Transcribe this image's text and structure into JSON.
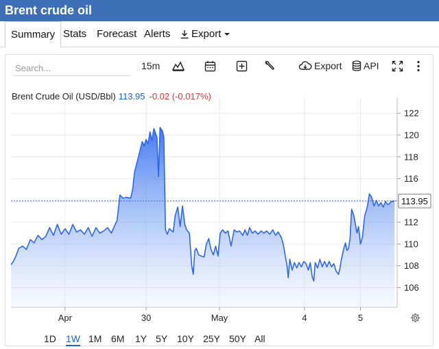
{
  "app": {
    "title": "Brent crude oil"
  },
  "tabs": [
    {
      "label": "Summary",
      "active": true
    },
    {
      "label": "Stats"
    },
    {
      "label": "Forecast"
    },
    {
      "label": "Alerts"
    },
    {
      "label": "Export",
      "icon": "download-icon",
      "dropdown": true
    }
  ],
  "toolbar": {
    "search_placeholder": "Search...",
    "interval": "15m",
    "export_label": "Export",
    "api_label": "API",
    "icons": [
      "area-chart-icon",
      "calendar-icon",
      "plus-square-icon",
      "wrench-icon",
      "cloud-download-icon",
      "database-icon",
      "fullscreen-icon",
      "more-vertical-icon"
    ]
  },
  "quote": {
    "name": "Brent Crude Oil (USD/Bbl)",
    "price": "113.95",
    "change": "-0.02 (-0.017%)"
  },
  "ranges": [
    {
      "label": "1D"
    },
    {
      "label": "1W",
      "active": true
    },
    {
      "label": "1M"
    },
    {
      "label": "6M"
    },
    {
      "label": "1Y"
    },
    {
      "label": "5Y"
    },
    {
      "label": "10Y"
    },
    {
      "label": "25Y"
    },
    {
      "label": "50Y"
    },
    {
      "label": "All"
    }
  ],
  "colors": {
    "header": "#3d6fb6",
    "line": "#2c66e8",
    "price": "#1f5fcf",
    "negative": "#d23b3b"
  },
  "chart_data": {
    "type": "area",
    "ylim": [
      104.2,
      123.4
    ],
    "y_ticks": [
      "122",
      "120",
      "118",
      "116",
      "114",
      "112",
      "110",
      "108",
      "106"
    ],
    "x_ticks": [
      {
        "label": "Apr",
        "x": 0.14
      },
      {
        "label": "30",
        "x": 0.35
      },
      {
        "label": "May",
        "x": 0.54
      },
      {
        "label": "4",
        "x": 0.76
      },
      {
        "label": "5",
        "x": 0.905
      }
    ],
    "last_label": "113.95",
    "last_value": 113.95,
    "series": [
      {
        "values": [
          [
            0.0,
            108.1
          ],
          [
            0.006,
            108.4
          ],
          [
            0.013,
            108.9
          ],
          [
            0.02,
            109.6
          ],
          [
            0.03,
            109.8
          ],
          [
            0.04,
            109.5
          ],
          [
            0.05,
            110.4
          ],
          [
            0.06,
            110.1
          ],
          [
            0.07,
            110.8
          ],
          [
            0.08,
            110.4
          ],
          [
            0.09,
            110.7
          ],
          [
            0.1,
            111.5
          ],
          [
            0.11,
            110.8
          ],
          [
            0.12,
            111.8
          ],
          [
            0.13,
            110.9
          ],
          [
            0.14,
            111.4
          ],
          [
            0.15,
            110.9
          ],
          [
            0.16,
            111.8
          ],
          [
            0.17,
            111.1
          ],
          [
            0.18,
            111.3
          ],
          [
            0.19,
            110.9
          ],
          [
            0.2,
            111.5
          ],
          [
            0.21,
            110.7
          ],
          [
            0.22,
            111.5
          ],
          [
            0.23,
            111.0
          ],
          [
            0.24,
            111.2
          ],
          [
            0.25,
            111.5
          ],
          [
            0.26,
            111.0
          ],
          [
            0.27,
            111.8
          ],
          [
            0.275,
            112.2
          ],
          [
            0.282,
            114.5
          ],
          [
            0.29,
            114.2
          ],
          [
            0.3,
            114.3
          ],
          [
            0.31,
            114.2
          ],
          [
            0.315,
            115.0
          ],
          [
            0.32,
            116.6
          ],
          [
            0.33,
            118.0
          ],
          [
            0.34,
            119.4
          ],
          [
            0.345,
            119.0
          ],
          [
            0.35,
            119.6
          ],
          [
            0.355,
            119.2
          ],
          [
            0.36,
            120.3
          ],
          [
            0.365,
            119.5
          ],
          [
            0.37,
            120.6
          ],
          [
            0.378,
            119.8
          ],
          [
            0.382,
            116.2
          ],
          [
            0.386,
            120.7
          ],
          [
            0.392,
            120.4
          ],
          [
            0.396,
            119.8
          ],
          [
            0.4,
            111.3
          ],
          [
            0.405,
            110.9
          ],
          [
            0.41,
            111.4
          ],
          [
            0.42,
            111.1
          ],
          [
            0.425,
            112.6
          ],
          [
            0.432,
            113.4
          ],
          [
            0.438,
            111.6
          ],
          [
            0.444,
            113.5
          ],
          [
            0.45,
            111.8
          ],
          [
            0.455,
            111.3
          ],
          [
            0.462,
            111.0
          ],
          [
            0.468,
            108.0
          ],
          [
            0.472,
            107.2
          ],
          [
            0.476,
            109.4
          ],
          [
            0.48,
            109.6
          ],
          [
            0.486,
            109.0
          ],
          [
            0.492,
            108.9
          ],
          [
            0.5,
            108.8
          ],
          [
            0.506,
            110.0
          ],
          [
            0.512,
            110.5
          ],
          [
            0.518,
            109.5
          ],
          [
            0.524,
            109.0
          ],
          [
            0.53,
            109.8
          ],
          [
            0.536,
            108.9
          ],
          [
            0.542,
            111.0
          ],
          [
            0.548,
            111.3
          ],
          [
            0.555,
            111.0
          ],
          [
            0.562,
            111.2
          ],
          [
            0.57,
            109.8
          ],
          [
            0.578,
            111.3
          ],
          [
            0.585,
            111.1
          ],
          [
            0.592,
            111.2
          ],
          [
            0.6,
            110.8
          ],
          [
            0.606,
            111.3
          ],
          [
            0.612,
            110.8
          ],
          [
            0.618,
            111.5
          ],
          [
            0.625,
            111.0
          ],
          [
            0.632,
            111.2
          ],
          [
            0.64,
            110.9
          ],
          [
            0.648,
            111.2
          ],
          [
            0.655,
            111.0
          ],
          [
            0.662,
            111.2
          ],
          [
            0.67,
            110.9
          ],
          [
            0.678,
            111.3
          ],
          [
            0.685,
            110.8
          ],
          [
            0.692,
            111.1
          ],
          [
            0.7,
            110.6
          ],
          [
            0.705,
            110.0
          ],
          [
            0.71,
            109.0
          ],
          [
            0.715,
            108.0
          ],
          [
            0.718,
            106.9
          ],
          [
            0.722,
            108.6
          ],
          [
            0.728,
            107.6
          ],
          [
            0.734,
            108.3
          ],
          [
            0.74,
            107.8
          ],
          [
            0.746,
            108.3
          ],
          [
            0.752,
            107.9
          ],
          [
            0.758,
            108.4
          ],
          [
            0.764,
            108.2
          ],
          [
            0.77,
            107.6
          ],
          [
            0.775,
            108.3
          ],
          [
            0.78,
            107.0
          ],
          [
            0.784,
            106.6
          ],
          [
            0.788,
            108.3
          ],
          [
            0.794,
            107.8
          ],
          [
            0.8,
            108.6
          ],
          [
            0.806,
            107.9
          ],
          [
            0.812,
            108.4
          ],
          [
            0.818,
            107.9
          ],
          [
            0.824,
            108.4
          ],
          [
            0.83,
            107.9
          ],
          [
            0.836,
            108.2
          ],
          [
            0.842,
            107.5
          ],
          [
            0.848,
            107.2
          ],
          [
            0.852,
            107.8
          ],
          [
            0.855,
            108.5
          ],
          [
            0.858,
            109.0
          ],
          [
            0.862,
            109.6
          ],
          [
            0.866,
            110.1
          ],
          [
            0.87,
            109.4
          ],
          [
            0.874,
            109.6
          ],
          [
            0.878,
            110.5
          ],
          [
            0.882,
            113.2
          ],
          [
            0.888,
            112.6
          ],
          [
            0.892,
            111.8
          ],
          [
            0.896,
            111.0
          ],
          [
            0.9,
            111.6
          ],
          [
            0.905,
            110.0
          ],
          [
            0.91,
            110.6
          ],
          [
            0.916,
            112.6
          ],
          [
            0.922,
            113.3
          ],
          [
            0.928,
            114.6
          ],
          [
            0.934,
            114.3
          ],
          [
            0.94,
            113.5
          ],
          [
            0.946,
            114.0
          ],
          [
            0.952,
            113.5
          ],
          [
            0.958,
            113.8
          ],
          [
            0.964,
            113.4
          ],
          [
            0.97,
            113.9
          ],
          [
            0.976,
            113.6
          ],
          [
            0.985,
            113.9
          ],
          [
            0.993,
            113.95
          ]
        ]
      }
    ]
  }
}
